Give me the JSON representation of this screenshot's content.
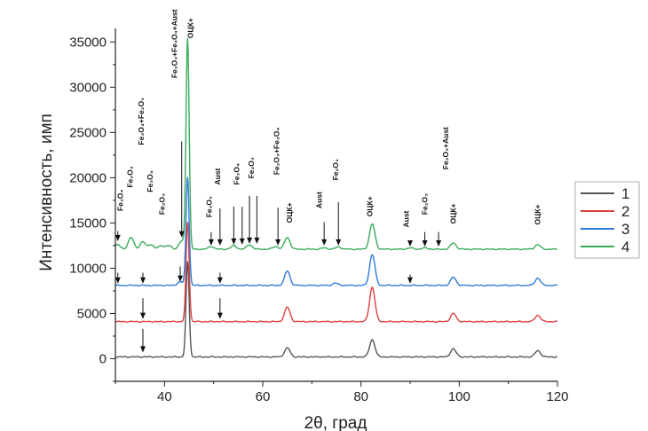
{
  "chart_data": {
    "type": "line",
    "xlabel": "2θ, град",
    "ylabel": "Интенсивность, имп",
    "xlim": [
      30,
      120
    ],
    "ylim": [
      -2500,
      36500
    ],
    "x_ticks": [
      40,
      60,
      80,
      100,
      120
    ],
    "x_tick_labels": [
      "40",
      "60",
      "80",
      "100",
      "120"
    ],
    "y_ticks": [
      0,
      5000,
      10000,
      15000,
      20000,
      25000,
      30000,
      35000
    ],
    "y_tick_labels": [
      "0",
      "5000",
      "10000",
      "15000",
      "20000",
      "25000",
      "30000",
      "35000"
    ],
    "grid": false,
    "legend_position": "right",
    "series": [
      {
        "name": "1",
        "color": "#555555",
        "offset": 200,
        "peaks": [
          [
            44.7,
            10500
          ],
          [
            65.0,
            1000
          ],
          [
            82.3,
            1900
          ],
          [
            98.8,
            900
          ],
          [
            116.0,
            700
          ]
        ]
      },
      {
        "name": "2",
        "color": "#e04040",
        "offset": 4100,
        "peaks": [
          [
            44.7,
            11000
          ],
          [
            65.0,
            1600
          ],
          [
            82.3,
            3800
          ],
          [
            98.8,
            900
          ],
          [
            116.0,
            700
          ]
        ]
      },
      {
        "name": "3",
        "color": "#2e7bd6",
        "offset": 8100,
        "peaks": [
          [
            43.2,
            400
          ],
          [
            44.7,
            12000
          ],
          [
            65.0,
            1600
          ],
          [
            74.8,
            250
          ],
          [
            82.3,
            3400
          ],
          [
            98.8,
            900
          ],
          [
            116.0,
            800
          ]
        ]
      },
      {
        "name": "4",
        "color": "#3aaa5a",
        "offset": 12100,
        "peaks": [
          [
            30.5,
            500
          ],
          [
            33.2,
            1300
          ],
          [
            35.6,
            800
          ],
          [
            37.2,
            500
          ],
          [
            39.3,
            400
          ],
          [
            40.9,
            400
          ],
          [
            43.5,
            900
          ],
          [
            44.7,
            23300
          ],
          [
            49.5,
            300
          ],
          [
            54.1,
            400
          ],
          [
            57.3,
            500
          ],
          [
            62.6,
            300
          ],
          [
            65.0,
            1300
          ],
          [
            72.5,
            150
          ],
          [
            75.4,
            250
          ],
          [
            82.3,
            2800
          ],
          [
            90.0,
            150
          ],
          [
            93.0,
            150
          ],
          [
            98.8,
            700
          ],
          [
            116.0,
            500
          ]
        ]
      }
    ],
    "annotations": [
      {
        "text": "Fe₃O₄",
        "x": 31.5,
        "y": 16300
      },
      {
        "text": "Fe₂O₃",
        "x": 33.5,
        "y": 18900
      },
      {
        "text": "Fe₃O₄+Fe₂O₃",
        "x": 35.8,
        "y": 23600
      },
      {
        "text": "Fe₃O₄",
        "x": 37.6,
        "y": 18400
      },
      {
        "text": "Fe₂O₃",
        "x": 40.0,
        "y": 15900
      },
      {
        "text": "Fe₂O₃+Fe₃O₄+Aust",
        "x": 42.6,
        "y": 31000
      },
      {
        "text": "ОЦК+",
        "x": 45.8,
        "y": 35400
      },
      {
        "text": "Fe₂O₃",
        "x": 49.6,
        "y": 15600
      },
      {
        "text": "Aust",
        "x": 51.3,
        "y": 19200
      },
      {
        "text": "Fe₃O₄",
        "x": 55.2,
        "y": 19200
      },
      {
        "text": "Fe₂O₃",
        "x": 58.2,
        "y": 19900
      },
      {
        "text": "Fe₂O₃+Fe₃O₄",
        "x": 63.3,
        "y": 20300
      },
      {
        "text": "ОЦК+",
        "x": 66.0,
        "y": 15000
      },
      {
        "text": "Aust",
        "x": 72.0,
        "y": 16600
      },
      {
        "text": "Fe₂O₃",
        "x": 75.4,
        "y": 19700
      },
      {
        "text": "ОЦК+",
        "x": 82.3,
        "y": 15700
      },
      {
        "text": "Aust",
        "x": 89.7,
        "y": 14500
      },
      {
        "text": "Fe₂O₃",
        "x": 93.5,
        "y": 15900
      },
      {
        "text": "Fe₂O₃+Aust",
        "x": 97.8,
        "y": 20900
      },
      {
        "text": "ОЦК+",
        "x": 99.3,
        "y": 14900
      },
      {
        "text": "ОЦК+",
        "x": 116.5,
        "y": 14800
      }
    ],
    "arrows": [
      {
        "x": 30.5,
        "y_from": 14100,
        "y_to": 13000
      },
      {
        "x": 43.5,
        "y_from": 24000,
        "y_to": 13400
      },
      {
        "x": 49.5,
        "y_from": 14000,
        "y_to": 12500
      },
      {
        "x": 51.3,
        "y_from": 16600,
        "y_to": 12500
      },
      {
        "x": 54.1,
        "y_from": 16800,
        "y_to": 12600
      },
      {
        "x": 55.8,
        "y_from": 16800,
        "y_to": 12600
      },
      {
        "x": 57.3,
        "y_from": 18000,
        "y_to": 12700
      },
      {
        "x": 58.8,
        "y_from": 18000,
        "y_to": 12700
      },
      {
        "x": 63.1,
        "y_from": 16700,
        "y_to": 12500
      },
      {
        "x": 72.5,
        "y_from": 15100,
        "y_to": 12500
      },
      {
        "x": 75.4,
        "y_from": 17300,
        "y_to": 12500
      },
      {
        "x": 90.0,
        "y_from": 12900,
        "y_to": 12400
      },
      {
        "x": 93.0,
        "y_from": 14000,
        "y_to": 12400
      },
      {
        "x": 95.8,
        "y_from": 14000,
        "y_to": 12400
      },
      {
        "x": 30.5,
        "y_from": 9500,
        "y_to": 8300
      },
      {
        "x": 35.6,
        "y_from": 9500,
        "y_to": 8300
      },
      {
        "x": 43.2,
        "y_from": 10200,
        "y_to": 8500
      },
      {
        "x": 51.3,
        "y_from": 9500,
        "y_to": 8300
      },
      {
        "x": 90.0,
        "y_from": 9300,
        "y_to": 8300
      },
      {
        "x": 35.6,
        "y_from": 6700,
        "y_to": 4400
      },
      {
        "x": 51.3,
        "y_from": 6700,
        "y_to": 4400
      },
      {
        "x": 35.6,
        "y_from": 3300,
        "y_to": 700
      }
    ],
    "legend": [
      "1",
      "2",
      "3",
      "4"
    ]
  }
}
